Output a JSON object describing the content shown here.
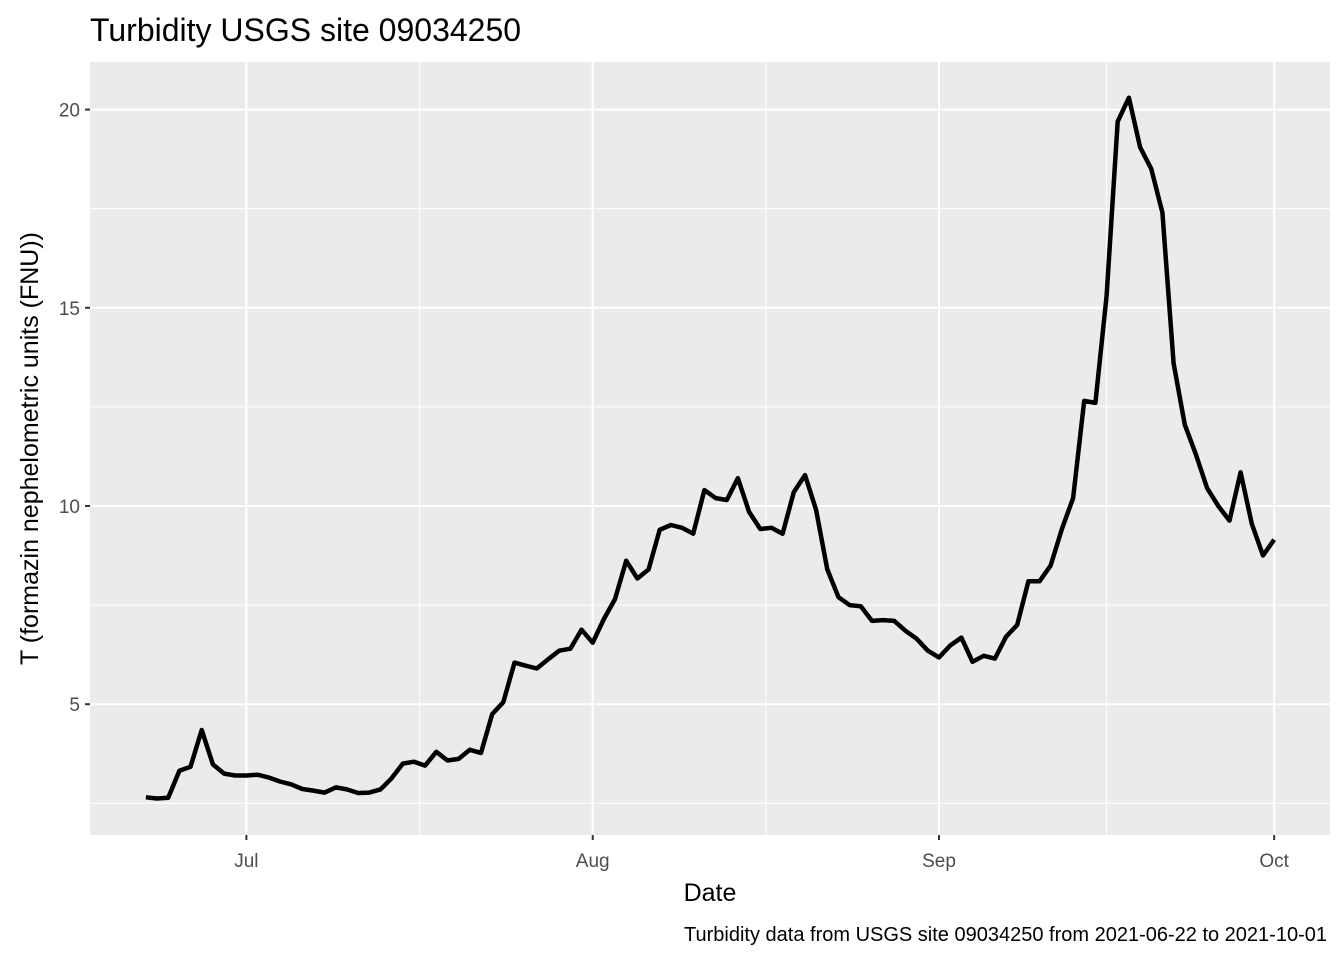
{
  "chart_data": {
    "type": "line",
    "title": "Turbidity USGS site 09034250",
    "xlabel": "Date",
    "ylabel": "T (formazin nephelometric units (FNU))",
    "caption": "Turbidity data from USGS site 09034250 from 2021-06-22 to 2021-10-01",
    "xlim": [
      "2021-06-17",
      "2021-10-06"
    ],
    "ylim": [
      1.7,
      21.2
    ],
    "x_ticks": [
      {
        "date": "2021-07-01",
        "label": "Jul"
      },
      {
        "date": "2021-08-01",
        "label": "Aug"
      },
      {
        "date": "2021-09-01",
        "label": "Sep"
      },
      {
        "date": "2021-10-01",
        "label": "Oct"
      }
    ],
    "y_ticks": [
      5,
      10,
      15,
      20
    ],
    "grid": true,
    "colors": {
      "panel": "#EBEBEB",
      "grid": "#FFFFFF",
      "line": "#000000",
      "tick_label": "#4D4D4D"
    },
    "series": [
      {
        "x": [
          "2021-06-22",
          "2021-06-23",
          "2021-06-24",
          "2021-06-25",
          "2021-06-26",
          "2021-06-27",
          "2021-06-28",
          "2021-06-29",
          "2021-06-30",
          "2021-07-01",
          "2021-07-02",
          "2021-07-03",
          "2021-07-04",
          "2021-07-05",
          "2021-07-06",
          "2021-07-07",
          "2021-07-08",
          "2021-07-09",
          "2021-07-10",
          "2021-07-11",
          "2021-07-12",
          "2021-07-13",
          "2021-07-14",
          "2021-07-15",
          "2021-07-16",
          "2021-07-17",
          "2021-07-18",
          "2021-07-19",
          "2021-07-20",
          "2021-07-21",
          "2021-07-22",
          "2021-07-23",
          "2021-07-24",
          "2021-07-25",
          "2021-07-26",
          "2021-07-27",
          "2021-07-28",
          "2021-07-29",
          "2021-07-30",
          "2021-07-31",
          "2021-08-01",
          "2021-08-02",
          "2021-08-03",
          "2021-08-04",
          "2021-08-05",
          "2021-08-06",
          "2021-08-07",
          "2021-08-08",
          "2021-08-09",
          "2021-08-10",
          "2021-08-11",
          "2021-08-12",
          "2021-08-13",
          "2021-08-14",
          "2021-08-15",
          "2021-08-16",
          "2021-08-17",
          "2021-08-18",
          "2021-08-19",
          "2021-08-20",
          "2021-08-21",
          "2021-08-22",
          "2021-08-23",
          "2021-08-24",
          "2021-08-25",
          "2021-08-26",
          "2021-08-27",
          "2021-08-28",
          "2021-08-29",
          "2021-08-30",
          "2021-08-31",
          "2021-09-01",
          "2021-09-02",
          "2021-09-03",
          "2021-09-04",
          "2021-09-05",
          "2021-09-06",
          "2021-09-07",
          "2021-09-08",
          "2021-09-09",
          "2021-09-10",
          "2021-09-11",
          "2021-09-12",
          "2021-09-13",
          "2021-09-14",
          "2021-09-15",
          "2021-09-16",
          "2021-09-17",
          "2021-09-18",
          "2021-09-19",
          "2021-09-20",
          "2021-09-21",
          "2021-09-22",
          "2021-09-23",
          "2021-09-24",
          "2021-09-25",
          "2021-09-26",
          "2021-09-27",
          "2021-09-28",
          "2021-09-29",
          "2021-09-30",
          "2021-10-01"
        ],
        "values": [
          2.65,
          2.62,
          2.64,
          3.32,
          3.42,
          4.35,
          3.48,
          3.25,
          3.2,
          3.2,
          3.22,
          3.15,
          3.05,
          2.98,
          2.86,
          2.82,
          2.77,
          2.9,
          2.85,
          2.76,
          2.77,
          2.85,
          3.13,
          3.5,
          3.55,
          3.45,
          3.8,
          3.58,
          3.62,
          3.85,
          3.77,
          4.75,
          5.05,
          6.05,
          5.97,
          5.9,
          6.13,
          6.35,
          6.4,
          6.88,
          6.55,
          7.15,
          7.65,
          8.62,
          8.17,
          8.4,
          9.4,
          9.52,
          9.45,
          9.3,
          10.4,
          10.2,
          10.15,
          10.7,
          9.85,
          9.42,
          9.45,
          9.3,
          10.35,
          10.78,
          9.9,
          8.4,
          7.7,
          7.5,
          7.47,
          7.1,
          7.12,
          7.1,
          6.85,
          6.65,
          6.35,
          6.18,
          6.48,
          6.68,
          6.07,
          6.22,
          6.15,
          6.7,
          7.0,
          8.1,
          8.1,
          8.5,
          9.42,
          10.2,
          12.65,
          12.6,
          15.3,
          19.7,
          20.3,
          19.05,
          18.5,
          17.4,
          13.6,
          12.05,
          11.3,
          10.45,
          10.0,
          9.63,
          10.85,
          9.55,
          8.75,
          9.15
        ]
      }
    ]
  }
}
